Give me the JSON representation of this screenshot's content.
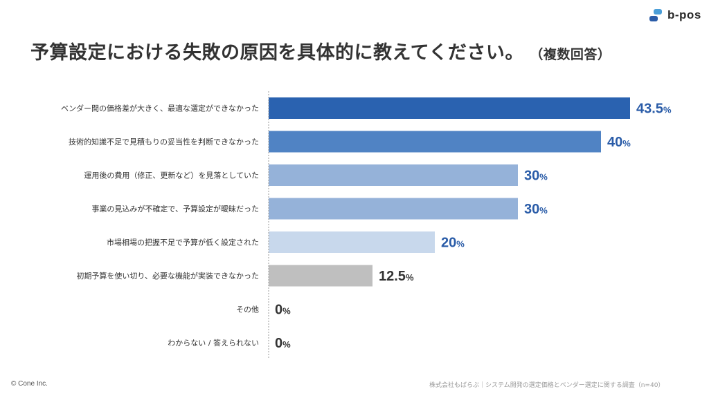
{
  "brand": {
    "name": "b-pos",
    "icon": "b-pos-logo-icon"
  },
  "header": {
    "title": "予算設定における失敗の原因を具体的に教えてください。",
    "subtitle": "（複数回答）"
  },
  "chart_data": {
    "type": "bar",
    "orientation": "horizontal",
    "title": "予算設定における失敗の原因を具体的に教えてください。（複数回答）",
    "categories": [
      "ベンダー間の価格差が大きく、最適な選定ができなかった",
      "技術的知識不足で見積もりの妥当性を判断できなかった",
      "運用後の費用（修正、更新など）を見落としていた",
      "事業の見込みが不確定で、予算設定が曖昧だった",
      "市場相場の把握不足で予算が低く設定された",
      "初期予算を使い切り、必要な機能が実装できなかった",
      "その他",
      "わからない / 答えられない"
    ],
    "values": [
      43.5,
      40,
      30,
      30,
      20,
      12.5,
      0,
      0
    ],
    "labels": [
      "43.5",
      "40",
      "30",
      "30",
      "20",
      "12.5",
      "0",
      "0"
    ],
    "unit": "%",
    "bar_colors": [
      "#2a62b0",
      "#5083c4",
      "#95b2d9",
      "#95b2d9",
      "#c8d8ec",
      "#bfbfbf",
      "#bfbfbf",
      "#bfbfbf"
    ],
    "label_colors": [
      "#2a5ca8",
      "#2a5ca8",
      "#2a5ca8",
      "#2a5ca8",
      "#2a5ca8",
      "#333333",
      "#333333",
      "#333333"
    ],
    "grid": false
  },
  "footer": {
    "copyright": "© Cone Inc.",
    "source": "株式会社もばらぶ｜システム開発の選定価格とベンダー選定に関する調査（n=40）"
  }
}
